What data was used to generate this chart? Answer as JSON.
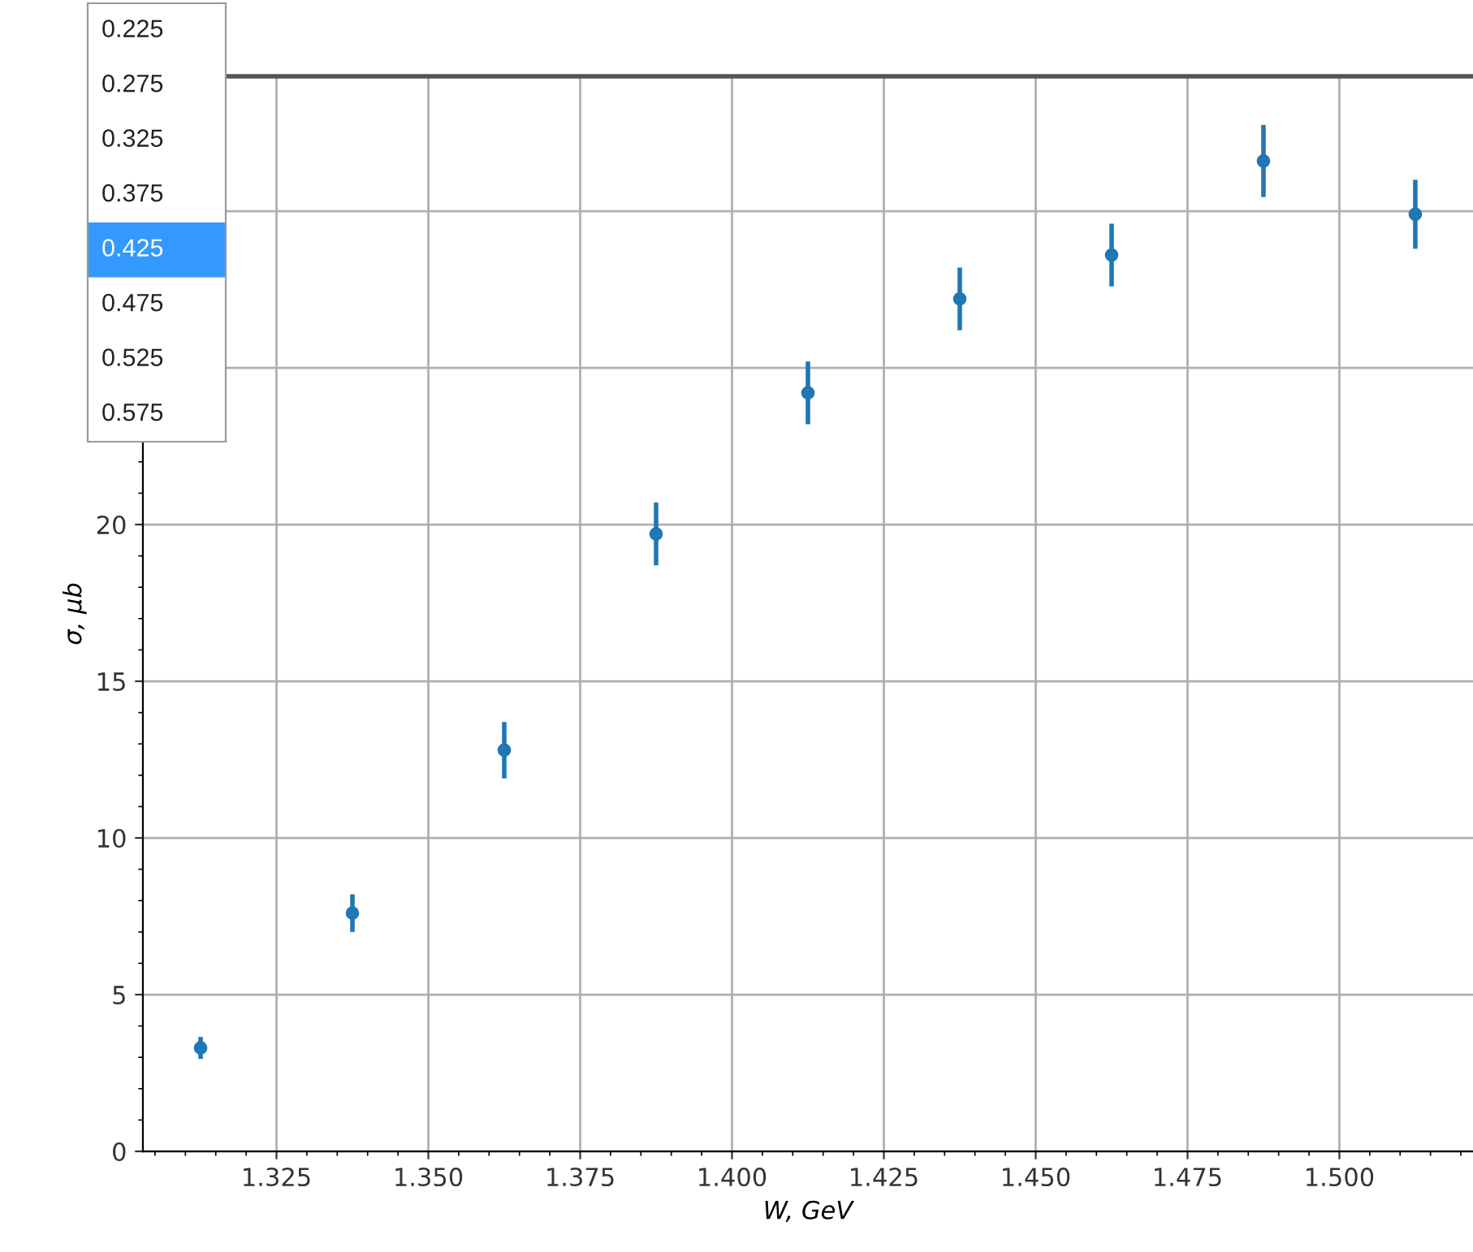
{
  "chart_data": {
    "type": "scatter",
    "xlabel": "W, GeV",
    "ylabel": "σ, μb",
    "x": [
      1.3125,
      1.3375,
      1.3625,
      1.3875,
      1.4125,
      1.4375,
      1.4625,
      1.4875,
      1.5125
    ],
    "series": [
      {
        "color": "#1f77b4",
        "values": [
          3.3,
          7.6,
          12.8,
          19.7,
          24.2,
          27.2,
          28.6,
          31.6,
          29.9
        ],
        "errors": [
          0.35,
          0.6,
          0.9,
          1.0,
          1.0,
          1.0,
          1.0,
          1.15,
          1.1
        ]
      }
    ],
    "xlim": [
      1.303,
      1.522
    ],
    "ylim": [
      0,
      34.3
    ],
    "xticks": [
      1.325,
      {
        "value": 1.35,
        "label": "1.350"
      },
      1.375,
      {
        "value": 1.4,
        "label": "1.400"
      },
      1.425,
      {
        "value": 1.45,
        "label": "1.450"
      },
      1.475,
      {
        "value": 1.5,
        "label": "1.500"
      }
    ],
    "yticks": [
      0,
      5,
      10,
      15,
      20,
      {
        "value": 25,
        "label": null
      },
      {
        "value": 30,
        "label": null
      }
    ],
    "grid": true,
    "marker": "circle",
    "annotations": [
      "0.225",
      "0.275",
      "0.325",
      "0.375",
      "0.425",
      "0.475",
      "0.525",
      "0.575"
    ]
  }
}
